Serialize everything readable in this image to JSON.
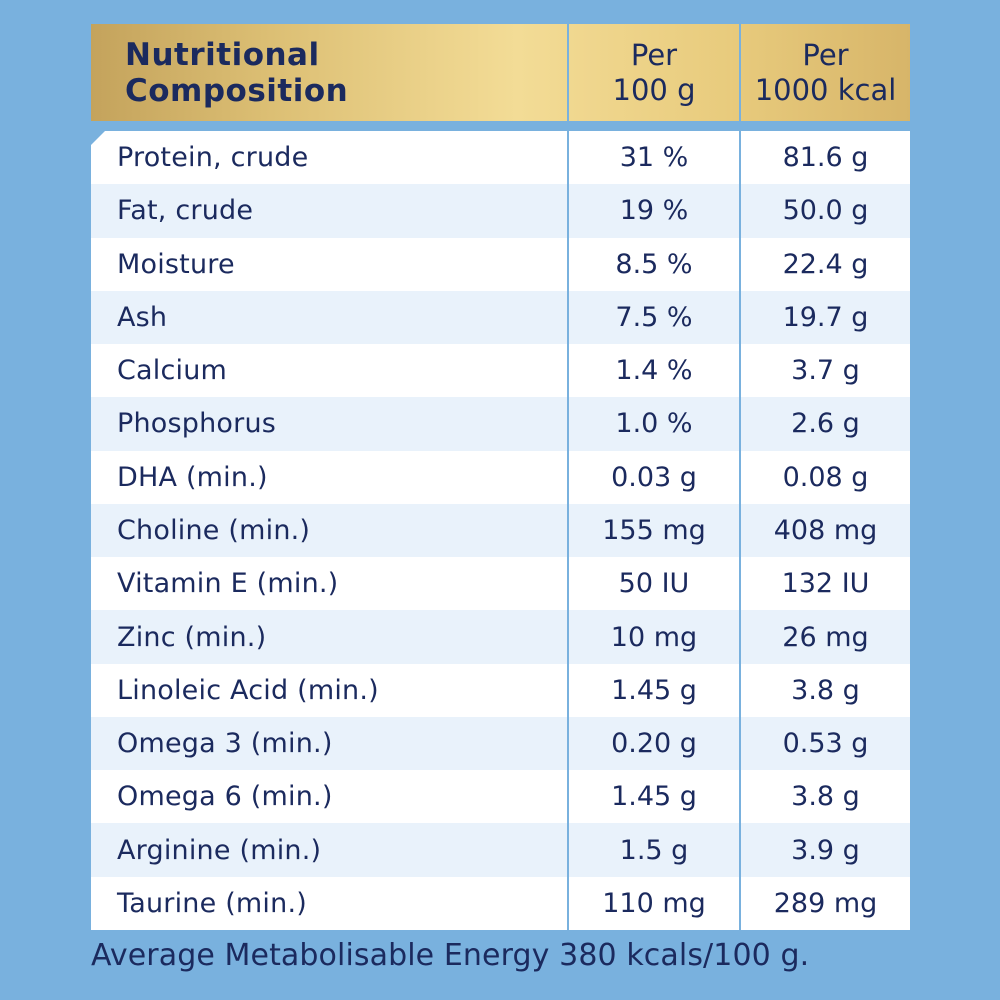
{
  "header": {
    "title": "Nutritional\nComposition",
    "col1": "Per\n100 g",
    "col2": "Per\n1000 kcal"
  },
  "rows": [
    {
      "label": "Protein, crude",
      "per100g": "31 %",
      "per1000kcal": "81.6 g"
    },
    {
      "label": "Fat, crude",
      "per100g": "19 %",
      "per1000kcal": "50.0 g"
    },
    {
      "label": "Moisture",
      "per100g": "8.5 %",
      "per1000kcal": "22.4 g"
    },
    {
      "label": "Ash",
      "per100g": "7.5 %",
      "per1000kcal": "19.7 g"
    },
    {
      "label": "Calcium",
      "per100g": "1.4 %",
      "per1000kcal": "3.7 g"
    },
    {
      "label": "Phosphorus",
      "per100g": "1.0 %",
      "per1000kcal": "2.6 g"
    },
    {
      "label": "DHA (min.)",
      "per100g": "0.03 g",
      "per1000kcal": "0.08 g"
    },
    {
      "label": "Choline (min.)",
      "per100g": "155 mg",
      "per1000kcal": "408 mg"
    },
    {
      "label": "Vitamin E (min.)",
      "per100g": "50 IU",
      "per1000kcal": "132 IU"
    },
    {
      "label": "Zinc (min.)",
      "per100g": "10 mg",
      "per1000kcal": "26 mg"
    },
    {
      "label": "Linoleic Acid (min.)",
      "per100g": "1.45 g",
      "per1000kcal": "3.8 g"
    },
    {
      "label": "Omega 3 (min.)",
      "per100g": "0.20 g",
      "per1000kcal": "0.53 g"
    },
    {
      "label": "Omega 6 (min.)",
      "per100g": "1.45 g",
      "per1000kcal": "3.8 g"
    },
    {
      "label": "Arginine (min.)",
      "per100g": "1.5 g",
      "per1000kcal": "3.9 g"
    },
    {
      "label": "Taurine (min.)",
      "per100g": "110 mg",
      "per1000kcal": "289 mg"
    }
  ],
  "footer": "Average Metabolisable Energy 380 kcals/100 g.",
  "colors": {
    "background": "#79b1de",
    "text": "#1b2a5e",
    "row_alt": "#e9f2fb",
    "header_gold": "#e8cb7d"
  }
}
